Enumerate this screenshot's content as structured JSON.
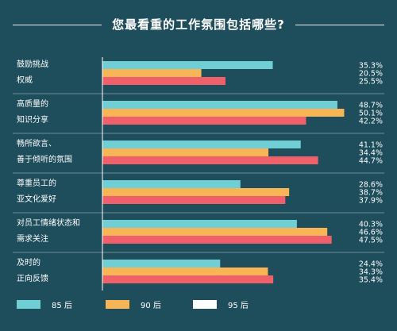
{
  "title": "您最看重的工作氛围包括哪些?",
  "chart_data": {
    "type": "bar",
    "orientation": "horizontal",
    "categories": [
      [
        "鼓励挑战",
        "权威"
      ],
      [
        "高质量的",
        "知识分享"
      ],
      [
        "畅所欲言、",
        "善于倾听的氛围"
      ],
      [
        "尊重员工的",
        "亚文化爱好"
      ],
      [
        "对员工情绪状态和",
        "需求关注"
      ],
      [
        "及时的",
        "正向反馈"
      ]
    ],
    "series": [
      {
        "name": "85 后",
        "color": "#6fcfd4",
        "values": [
          35.3,
          48.7,
          41.1,
          28.6,
          40.3,
          24.4
        ]
      },
      {
        "name": "90 后",
        "color": "#f7b555",
        "values": [
          20.5,
          50.1,
          34.4,
          38.7,
          46.6,
          34.3
        ]
      },
      {
        "name": "95 后",
        "color": "#ffffff",
        "bar_color": "#f0606a",
        "values": [
          25.5,
          42.2,
          44.7,
          37.9,
          47.5,
          35.4
        ]
      }
    ],
    "value_labels": [
      [
        "35.3%",
        "20.5%",
        "25.5%"
      ],
      [
        "48.7%",
        "50.1%",
        "42.2%"
      ],
      [
        "41.1%",
        "34.4%",
        "44.7%"
      ],
      [
        "28.6%",
        "38.7%",
        "37.9%"
      ],
      [
        "40.3%",
        "46.6%",
        "47.5%"
      ],
      [
        "24.4%",
        "34.3%",
        "35.4%"
      ]
    ],
    "xlim": [
      0,
      52
    ],
    "unit": "%",
    "legend_position": "bottom"
  }
}
